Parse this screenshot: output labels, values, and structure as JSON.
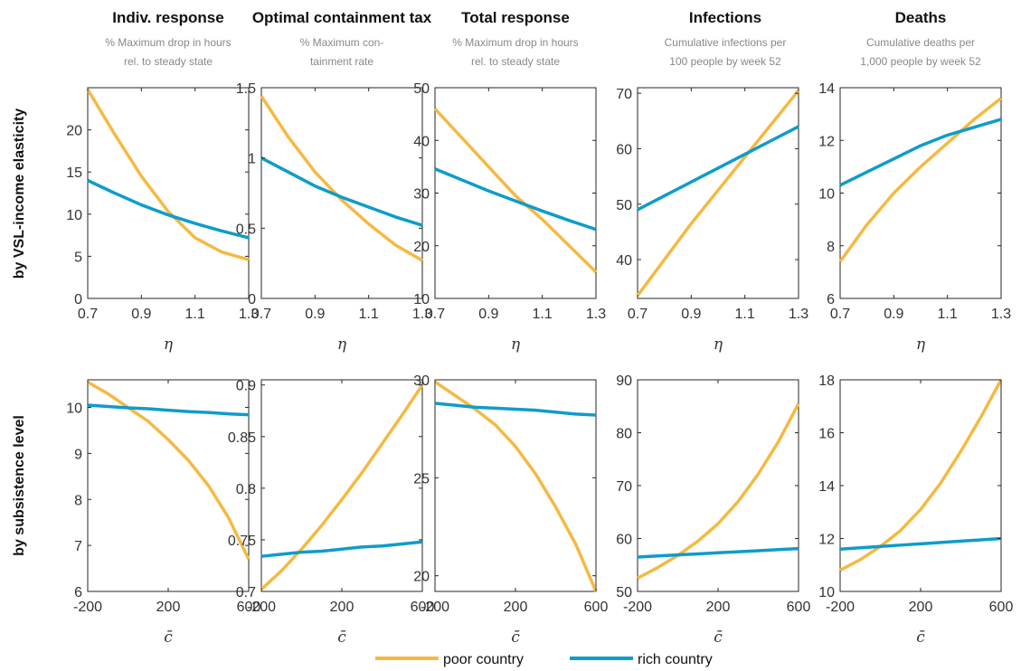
{
  "figure": {
    "row_labels": [
      "by VSL-income elasticity",
      "by subsistence level"
    ],
    "columns": [
      {
        "title": "Indiv. response",
        "subtitle": [
          "% Maximum drop in hours",
          "rel. to steady state"
        ]
      },
      {
        "title": "Optimal containment tax",
        "subtitle": [
          "% Maximum con-",
          "tainment rate"
        ]
      },
      {
        "title": "Total response",
        "subtitle": [
          "% Maximum drop in hours",
          "rel. to steady state"
        ]
      },
      {
        "title": "Infections",
        "subtitle": [
          "Cumulative infections per",
          "100 people by week 52"
        ]
      },
      {
        "title": "Deaths",
        "subtitle": [
          "Cumulative deaths per",
          "1,000 people by week 52"
        ]
      }
    ],
    "legend": [
      {
        "label": "poor country",
        "color": "#f5b942"
      },
      {
        "label": "rich country",
        "color": "#0e9ccb"
      }
    ]
  },
  "chart_data": [
    {
      "type": "line",
      "row": 0,
      "col": 0,
      "title": "Indiv. response",
      "xlabel": "η",
      "x": [
        0.7,
        0.8,
        0.9,
        1.0,
        1.1,
        1.2,
        1.3
      ],
      "xlim": [
        0.7,
        1.3
      ],
      "xticks": [
        "0.7",
        "0.9",
        "1.1",
        "1.3"
      ],
      "ylim": [
        0,
        25
      ],
      "yticks": [
        "0",
        "5",
        "10",
        "15",
        "20"
      ],
      "series": [
        {
          "name": "poor country",
          "values": [
            24.8,
            19.5,
            14.5,
            10.3,
            7.2,
            5.5,
            4.6
          ]
        },
        {
          "name": "rich country",
          "values": [
            14.0,
            12.5,
            11.1,
            9.9,
            8.9,
            8.0,
            7.2
          ]
        }
      ]
    },
    {
      "type": "line",
      "row": 0,
      "col": 1,
      "title": "Optimal containment tax",
      "xlabel": "η",
      "x": [
        0.7,
        0.8,
        0.9,
        1.0,
        1.1,
        1.2,
        1.3
      ],
      "xlim": [
        0.7,
        1.3
      ],
      "xticks": [
        "0.7",
        "0.9",
        "1.1",
        "1.3"
      ],
      "ylim": [
        0,
        1.5
      ],
      "yticks": [
        "0",
        "0.5",
        "1",
        "1.5"
      ],
      "series": [
        {
          "name": "poor country",
          "values": [
            1.44,
            1.15,
            0.9,
            0.7,
            0.53,
            0.38,
            0.27
          ]
        },
        {
          "name": "rich country",
          "values": [
            1.0,
            0.9,
            0.8,
            0.72,
            0.65,
            0.58,
            0.52
          ]
        }
      ]
    },
    {
      "type": "line",
      "row": 0,
      "col": 2,
      "title": "Total response",
      "xlabel": "η",
      "x": [
        0.7,
        0.8,
        0.9,
        1.0,
        1.1,
        1.2,
        1.3
      ],
      "xlim": [
        0.7,
        1.3
      ],
      "xticks": [
        "0.7",
        "0.9",
        "1.1",
        "1.3"
      ],
      "ylim": [
        10,
        50
      ],
      "yticks": [
        "10",
        "20",
        "30",
        "40",
        "50"
      ],
      "series": [
        {
          "name": "poor country",
          "values": [
            46,
            40.5,
            35,
            29.5,
            25,
            20,
            15
          ]
        },
        {
          "name": "rich country",
          "values": [
            34.6,
            32.5,
            30.4,
            28.5,
            26.6,
            24.8,
            23.1
          ]
        }
      ]
    },
    {
      "type": "line",
      "row": 0,
      "col": 3,
      "title": "Infections",
      "xlabel": "η",
      "x": [
        0.7,
        0.8,
        0.9,
        1.0,
        1.1,
        1.2,
        1.3
      ],
      "xlim": [
        0.7,
        1.3
      ],
      "xticks": [
        "0.7",
        "0.9",
        "1.1",
        "1.3"
      ],
      "ylim": [
        33,
        71
      ],
      "yticks": [
        "40",
        "50",
        "60",
        "70"
      ],
      "series": [
        {
          "name": "poor country",
          "values": [
            33.5,
            40,
            46.5,
            52.5,
            58.5,
            64.5,
            70.5
          ]
        },
        {
          "name": "rich country",
          "values": [
            49,
            51.5,
            54,
            56.5,
            59,
            61.5,
            64
          ]
        }
      ]
    },
    {
      "type": "line",
      "row": 0,
      "col": 4,
      "title": "Deaths",
      "xlabel": "η",
      "x": [
        0.7,
        0.8,
        0.9,
        1.0,
        1.1,
        1.2,
        1.3
      ],
      "xlim": [
        0.7,
        1.3
      ],
      "xticks": [
        "0.7",
        "0.9",
        "1.1",
        "1.3"
      ],
      "ylim": [
        6,
        14
      ],
      "yticks": [
        "6",
        "8",
        "10",
        "12",
        "14"
      ],
      "series": [
        {
          "name": "poor country",
          "values": [
            7.4,
            8.8,
            10.0,
            11.0,
            11.9,
            12.8,
            13.6
          ]
        },
        {
          "name": "rich country",
          "values": [
            10.3,
            10.8,
            11.3,
            11.8,
            12.2,
            12.5,
            12.8
          ]
        }
      ]
    },
    {
      "type": "line",
      "row": 1,
      "col": 0,
      "title": "Indiv. response",
      "xlabel": "c̄",
      "x": [
        -200,
        -100,
        0,
        100,
        200,
        300,
        400,
        500,
        600
      ],
      "xlim": [
        -200,
        600
      ],
      "xticks": [
        "-200",
        "200",
        "600"
      ],
      "ylim": [
        6,
        10.6
      ],
      "yticks": [
        "6",
        "7",
        "8",
        "9",
        "10"
      ],
      "series": [
        {
          "name": "poor country",
          "values": [
            10.55,
            10.3,
            10.0,
            9.7,
            9.3,
            8.85,
            8.3,
            7.6,
            6.7
          ]
        },
        {
          "name": "rich country",
          "values": [
            10.05,
            10.02,
            9.99,
            9.97,
            9.94,
            9.91,
            9.89,
            9.86,
            9.84
          ]
        }
      ]
    },
    {
      "type": "line",
      "row": 1,
      "col": 1,
      "title": "Optimal containment tax",
      "xlabel": "c̄",
      "x": [
        -200,
        -100,
        0,
        100,
        200,
        300,
        400,
        500,
        600
      ],
      "xlim": [
        -200,
        600
      ],
      "xticks": [
        "-200",
        "200",
        "600"
      ],
      "ylim": [
        0.7,
        0.905
      ],
      "yticks": [
        "0.7",
        "0.75",
        "0.8",
        "0.85",
        "0.9"
      ],
      "series": [
        {
          "name": "poor country",
          "values": [
            0.702,
            0.72,
            0.741,
            0.764,
            0.789,
            0.815,
            0.843,
            0.871,
            0.9
          ]
        },
        {
          "name": "rich country",
          "values": [
            0.734,
            0.736,
            0.738,
            0.739,
            0.741,
            0.743,
            0.744,
            0.746,
            0.748
          ]
        }
      ]
    },
    {
      "type": "line",
      "row": 1,
      "col": 2,
      "title": "Total response",
      "xlabel": "c̄",
      "x": [
        -200,
        -100,
        0,
        100,
        200,
        300,
        400,
        500,
        600
      ],
      "xlim": [
        -200,
        600
      ],
      "xticks": [
        "-200",
        "200",
        "600"
      ],
      "ylim": [
        19.2,
        30
      ],
      "yticks": [
        "20",
        "25",
        "30"
      ],
      "series": [
        {
          "name": "poor country",
          "values": [
            29.9,
            29.2,
            28.5,
            27.7,
            26.6,
            25.2,
            23.5,
            21.6,
            19.2
          ]
        },
        {
          "name": "rich country",
          "values": [
            28.8,
            28.7,
            28.6,
            28.55,
            28.5,
            28.45,
            28.35,
            28.25,
            28.2
          ]
        }
      ]
    },
    {
      "type": "line",
      "row": 1,
      "col": 3,
      "title": "Infections",
      "xlabel": "c̄",
      "x": [
        -200,
        -100,
        0,
        100,
        200,
        300,
        400,
        500,
        600
      ],
      "xlim": [
        -200,
        600
      ],
      "xticks": [
        "-200",
        "200",
        "600"
      ],
      "ylim": [
        50,
        90
      ],
      "yticks": [
        "50",
        "60",
        "70",
        "80",
        "90"
      ],
      "series": [
        {
          "name": "poor country",
          "values": [
            52.5,
            54.5,
            56.8,
            59.5,
            62.8,
            67,
            72.2,
            78.3,
            85.5
          ]
        },
        {
          "name": "rich country",
          "values": [
            56.5,
            56.7,
            56.9,
            57.1,
            57.3,
            57.5,
            57.7,
            57.9,
            58.1
          ]
        }
      ]
    },
    {
      "type": "line",
      "row": 1,
      "col": 4,
      "title": "Deaths",
      "xlabel": "c̄",
      "x": [
        -200,
        -100,
        0,
        100,
        200,
        300,
        400,
        500,
        600
      ],
      "xlim": [
        -200,
        600
      ],
      "xticks": [
        "-200",
        "200",
        "600"
      ],
      "ylim": [
        10,
        18
      ],
      "yticks": [
        "10",
        "12",
        "14",
        "16",
        "18"
      ],
      "series": [
        {
          "name": "poor country",
          "values": [
            10.8,
            11.2,
            11.7,
            12.3,
            13.1,
            14.1,
            15.3,
            16.6,
            18.0
          ]
        },
        {
          "name": "rich country",
          "values": [
            11.6,
            11.65,
            11.7,
            11.75,
            11.8,
            11.85,
            11.9,
            11.95,
            12.0
          ]
        }
      ]
    }
  ]
}
